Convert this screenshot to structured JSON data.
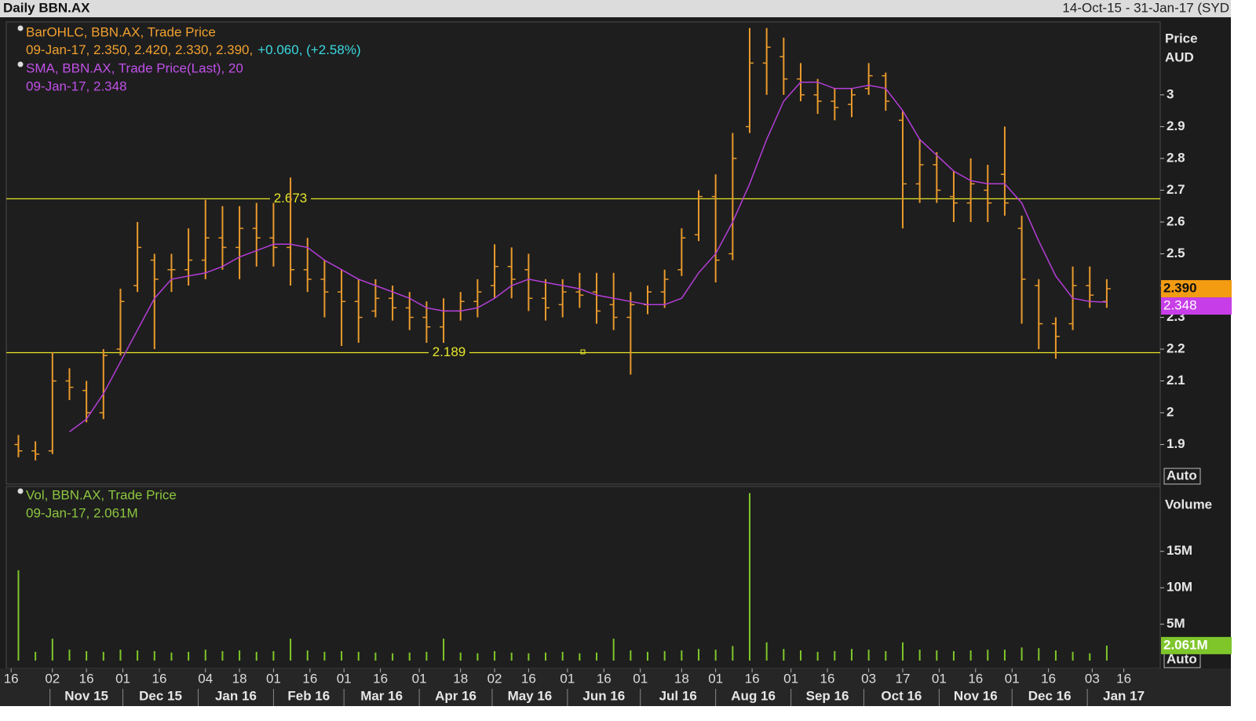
{
  "chart_data": [
    {
      "type": "ohlc",
      "title": "Daily BBN.AX",
      "range_label": "14-Oct-15 - 31-Jan-17 (SYD",
      "x": [
        "19-Oct-15",
        "26-Oct-15",
        "02-Nov-15",
        "09-Nov-15",
        "16-Nov-15",
        "23-Nov-15",
        "30-Nov-15",
        "07-Dec-15",
        "14-Dec-15",
        "21-Dec-15",
        "28-Dec-15",
        "04-Jan-16",
        "11-Jan-16",
        "18-Jan-16",
        "25-Jan-16",
        "01-Feb-16",
        "08-Feb-16",
        "15-Feb-16",
        "22-Feb-16",
        "29-Feb-16",
        "07-Mar-16",
        "14-Mar-16",
        "21-Mar-16",
        "28-Mar-16",
        "04-Apr-16",
        "11-Apr-16",
        "18-Apr-16",
        "25-Apr-16",
        "02-May-16",
        "09-May-16",
        "16-May-16",
        "23-May-16",
        "30-May-16",
        "06-Jun-16",
        "13-Jun-16",
        "20-Jun-16",
        "27-Jun-16",
        "04-Jul-16",
        "11-Jul-16",
        "18-Jul-16",
        "25-Jul-16",
        "01-Aug-16",
        "08-Aug-16",
        "15-Aug-16",
        "22-Aug-16",
        "29-Aug-16",
        "05-Sep-16",
        "12-Sep-16",
        "19-Sep-16",
        "26-Sep-16",
        "03-Oct-16",
        "10-Oct-16",
        "17-Oct-16",
        "24-Oct-16",
        "31-Oct-16",
        "07-Nov-16",
        "14-Nov-16",
        "21-Nov-16",
        "28-Nov-16",
        "05-Dec-16",
        "12-Dec-16",
        "19-Dec-16",
        "26-Dec-16",
        "02-Jan-17",
        "09-Jan-17"
      ],
      "xlim": [
        "14-Oct-15",
        "31-Jan-17"
      ],
      "open": [
        1.9,
        1.88,
        1.88,
        2.1,
        2.07,
        2.0,
        2.2,
        2.4,
        2.48,
        2.45,
        2.45,
        2.48,
        2.55,
        2.52,
        2.58,
        2.55,
        2.52,
        2.45,
        2.42,
        2.38,
        2.35,
        2.32,
        2.36,
        2.33,
        2.3,
        2.27,
        2.32,
        2.35,
        2.4,
        2.46,
        2.45,
        2.36,
        2.34,
        2.38,
        2.38,
        2.34,
        2.3,
        2.34,
        2.38,
        2.45,
        2.56,
        2.68,
        2.5,
        2.9,
        3.1,
        3.12,
        3.05,
        3.0,
        2.98,
        2.97,
        3.02,
        3.06,
        2.92,
        2.72,
        2.78,
        2.68,
        2.66,
        2.7,
        2.75,
        2.58,
        2.4,
        2.28,
        2.28,
        2.4,
        2.35
      ],
      "high": [
        1.93,
        1.91,
        2.19,
        2.14,
        2.1,
        2.2,
        2.39,
        2.6,
        2.5,
        2.5,
        2.58,
        2.67,
        2.65,
        2.65,
        2.66,
        2.66,
        2.74,
        2.55,
        2.48,
        2.45,
        2.42,
        2.42,
        2.4,
        2.38,
        2.35,
        2.36,
        2.38,
        2.42,
        2.53,
        2.52,
        2.5,
        2.42,
        2.42,
        2.44,
        2.44,
        2.44,
        2.38,
        2.4,
        2.45,
        2.58,
        2.7,
        2.75,
        2.88,
        3.21,
        3.21,
        3.18,
        3.1,
        3.05,
        3.02,
        3.02,
        3.1,
        3.07,
        2.95,
        2.86,
        2.82,
        2.76,
        2.8,
        2.78,
        2.9,
        2.62,
        2.42,
        2.3,
        2.46,
        2.46,
        2.42
      ],
      "low": [
        1.86,
        1.85,
        1.87,
        2.04,
        1.97,
        1.98,
        2.18,
        2.38,
        2.2,
        2.38,
        2.4,
        2.42,
        2.45,
        2.42,
        2.46,
        2.46,
        2.4,
        2.38,
        2.3,
        2.21,
        2.22,
        2.3,
        2.29,
        2.26,
        2.22,
        2.22,
        2.29,
        2.3,
        2.36,
        2.36,
        2.32,
        2.29,
        2.3,
        2.33,
        2.28,
        2.26,
        2.12,
        2.31,
        2.33,
        2.43,
        2.54,
        2.41,
        2.48,
        2.88,
        3.0,
        3.0,
        2.98,
        2.94,
        2.92,
        2.93,
        3.0,
        2.95,
        2.58,
        2.66,
        2.66,
        2.6,
        2.6,
        2.6,
        2.62,
        2.28,
        2.2,
        2.17,
        2.26,
        2.33,
        2.33
      ],
      "close": [
        1.88,
        1.87,
        2.1,
        2.08,
        2.0,
        2.18,
        2.35,
        2.52,
        2.42,
        2.45,
        2.48,
        2.55,
        2.52,
        2.58,
        2.55,
        2.52,
        2.45,
        2.42,
        2.38,
        2.35,
        2.3,
        2.36,
        2.33,
        2.3,
        2.27,
        2.32,
        2.35,
        2.38,
        2.46,
        2.42,
        2.36,
        2.33,
        2.38,
        2.37,
        2.32,
        2.3,
        2.34,
        2.38,
        2.42,
        2.55,
        2.68,
        2.48,
        2.8,
        3.1,
        3.15,
        3.05,
        3.0,
        2.98,
        2.96,
        3.0,
        3.06,
        2.98,
        2.72,
        2.78,
        2.7,
        2.66,
        2.72,
        2.66,
        2.66,
        2.42,
        2.28,
        2.24,
        2.4,
        2.37,
        2.39
      ],
      "color": "#e99a2c",
      "sma": {
        "color": "#b43ed8",
        "values": [
          null,
          null,
          null,
          1.94,
          1.98,
          2.06,
          2.16,
          2.26,
          2.36,
          2.42,
          2.43,
          2.44,
          2.46,
          2.49,
          2.51,
          2.53,
          2.53,
          2.52,
          2.48,
          2.45,
          2.42,
          2.4,
          2.38,
          2.36,
          2.33,
          2.32,
          2.32,
          2.33,
          2.36,
          2.4,
          2.42,
          2.41,
          2.4,
          2.39,
          2.37,
          2.36,
          2.35,
          2.34,
          2.34,
          2.36,
          2.44,
          2.5,
          2.6,
          2.72,
          2.86,
          2.98,
          3.04,
          3.04,
          3.02,
          3.02,
          3.03,
          3.02,
          2.95,
          2.86,
          2.81,
          2.76,
          2.73,
          2.72,
          2.72,
          2.66,
          2.54,
          2.43,
          2.36,
          2.35,
          2.348
        ]
      },
      "legend": {
        "ohlc_title": "BarOHLC, BBN.AX, Trade Price",
        "ohlc_values": "09-Jan-17, 2.350, 2.420, 2.330, 2.390,",
        "ohlc_change": "+0.060, (+2.58%)",
        "sma_title": "SMA, BBN.AX, Trade Price(Last),  20",
        "sma_values": "09-Jan-17, 2.348"
      },
      "y_label": [
        "Price",
        "AUD"
      ],
      "ylim": [
        1.783,
        3.212
      ],
      "yticks": [
        1.9,
        2,
        2.1,
        2.2,
        2.3,
        2.4,
        2.5,
        2.6,
        2.7,
        2.8,
        2.9,
        3
      ],
      "hlines": [
        2.673,
        2.189
      ],
      "hline_color": "#e6e62a",
      "last_labels": [
        {
          "value": 2.39,
          "label": "2.390",
          "color": "#f39c12"
        },
        {
          "value": 2.348,
          "label": "2.348",
          "color": "#c73ee8"
        }
      ],
      "scale_mode": "Auto"
    },
    {
      "type": "bar",
      "legend": {
        "title": "Vol, BBN.AX, Trade Price",
        "values": "09-Jan-17, 2.061M"
      },
      "values": [
        12400000,
        1200000,
        3000000,
        1500000,
        1300000,
        1200000,
        1500000,
        1400000,
        1300000,
        1100000,
        1200000,
        1500000,
        1300000,
        1400000,
        1200000,
        1300000,
        3000000,
        1400000,
        1200000,
        1300000,
        1200000,
        1100000,
        1000000,
        1100000,
        1200000,
        3000000,
        1100000,
        1000000,
        1300000,
        1100000,
        1000000,
        1100000,
        1200000,
        1000000,
        1100000,
        3000000,
        1400000,
        1200000,
        1300000,
        1400000,
        1600000,
        1500000,
        2000000,
        23000000,
        2500000,
        1600000,
        1400000,
        1200000,
        1300000,
        1600000,
        1500000,
        1300000,
        2500000,
        1500000,
        1400000,
        1300000,
        1400000,
        1500000,
        1500000,
        1800000,
        1700000,
        1400000,
        1200000,
        1000000,
        2061000
      ],
      "color": "#7fc62b",
      "y_label": "Volume",
      "ylim": [
        0,
        23700000
      ],
      "yticks": [
        {
          "value": 5000000,
          "label": "5M"
        },
        {
          "value": 10000000,
          "label": "10M"
        },
        {
          "value": 15000000,
          "label": "15M"
        }
      ],
      "last_label": {
        "value": 2061000,
        "label": "2.061M"
      },
      "scale_mode": "Auto",
      "xticks": [
        {
          "value": "16-Oct-15",
          "label": "16"
        },
        {
          "value": "02-Nov-15",
          "label": "02"
        },
        {
          "value": "16-Nov-15",
          "label": "16"
        },
        {
          "value": "01-Dec-15",
          "label": "01"
        },
        {
          "value": "16-Dec-15",
          "label": "16"
        },
        {
          "value": "04-Jan-16",
          "label": "04"
        },
        {
          "value": "18-Jan-16",
          "label": "18"
        },
        {
          "value": "01-Feb-16",
          "label": "01"
        },
        {
          "value": "16-Feb-16",
          "label": "16"
        },
        {
          "value": "01-Mar-16",
          "label": "01"
        },
        {
          "value": "16-Mar-16",
          "label": "16"
        },
        {
          "value": "01-Apr-16",
          "label": "01"
        },
        {
          "value": "18-Apr-16",
          "label": "18"
        },
        {
          "value": "02-May-16",
          "label": "02"
        },
        {
          "value": "16-May-16",
          "label": "16"
        },
        {
          "value": "01-Jun-16",
          "label": "01"
        },
        {
          "value": "16-Jun-16",
          "label": "16"
        },
        {
          "value": "01-Jul-16",
          "label": "01"
        },
        {
          "value": "18-Jul-16",
          "label": "18"
        },
        {
          "value": "01-Aug-16",
          "label": "01"
        },
        {
          "value": "16-Aug-16",
          "label": "16"
        },
        {
          "value": "01-Sep-16",
          "label": "01"
        },
        {
          "value": "16-Sep-16",
          "label": "16"
        },
        {
          "value": "03-Oct-16",
          "label": "03"
        },
        {
          "value": "17-Oct-16",
          "label": "17"
        },
        {
          "value": "01-Nov-16",
          "label": "01"
        },
        {
          "value": "16-Nov-16",
          "label": "16"
        },
        {
          "value": "01-Dec-16",
          "label": "01"
        },
        {
          "value": "16-Dec-16",
          "label": "16"
        },
        {
          "value": "03-Jan-17",
          "label": "03"
        },
        {
          "value": "16-Jan-17",
          "label": "16"
        }
      ],
      "month_ticks": [
        {
          "value": "01-Nov-15",
          "label": "Nov 15"
        },
        {
          "value": "01-Dec-15",
          "label": "Dec 15"
        },
        {
          "value": "01-Jan-16",
          "label": "Jan 16"
        },
        {
          "value": "01-Feb-16",
          "label": "Feb 16"
        },
        {
          "value": "01-Mar-16",
          "label": "Mar 16"
        },
        {
          "value": "01-Apr-16",
          "label": "Apr 16"
        },
        {
          "value": "01-May-16",
          "label": "May 16"
        },
        {
          "value": "01-Jun-16",
          "label": "Jun 16"
        },
        {
          "value": "01-Jul-16",
          "label": "Jul 16"
        },
        {
          "value": "01-Aug-16",
          "label": "Aug 16"
        },
        {
          "value": "01-Sep-16",
          "label": "Sep 16"
        },
        {
          "value": "01-Oct-16",
          "label": "Oct 16"
        },
        {
          "value": "01-Nov-16",
          "label": "Nov 16"
        },
        {
          "value": "01-Dec-16",
          "label": "Dec 16"
        },
        {
          "value": "01-Jan-17",
          "label": "Jan 17"
        }
      ]
    }
  ]
}
